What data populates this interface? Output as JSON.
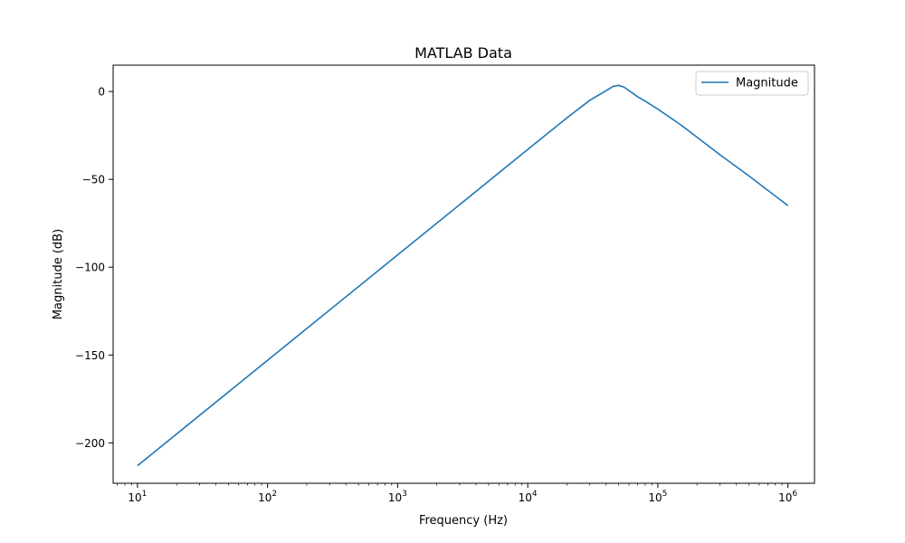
{
  "chart_data": {
    "type": "line",
    "title": "MATLAB Data",
    "xlabel": "Frequency (Hz)",
    "ylabel": "Magnitude (dB)",
    "x_scale": "log",
    "xlim": [
      6.5,
      1600000
    ],
    "ylim": [
      -223,
      15
    ],
    "x_ticks": [
      10,
      100,
      1000,
      10000,
      100000,
      1000000
    ],
    "x_tick_labels": [
      {
        "base": "10",
        "exp": "1"
      },
      {
        "base": "10",
        "exp": "2"
      },
      {
        "base": "10",
        "exp": "3"
      },
      {
        "base": "10",
        "exp": "4"
      },
      {
        "base": "10",
        "exp": "5"
      },
      {
        "base": "10",
        "exp": "6"
      }
    ],
    "y_ticks": [
      0,
      -50,
      -100,
      -150,
      -200
    ],
    "y_tick_labels": [
      "0",
      "−50",
      "−100",
      "−150",
      "−200"
    ],
    "grid": false,
    "legend_position": "top-right",
    "series": [
      {
        "name": "Magnitude",
        "color": "#1f77b4",
        "x": [
          10,
          100,
          1000,
          10000,
          20000,
          30000,
          40000,
          45000,
          50000,
          55000,
          60000,
          70000,
          80000,
          100000,
          150000,
          200000,
          300000,
          500000,
          1000000
        ],
        "y": [
          -213,
          -153,
          -93,
          -33,
          -15,
          -5,
          0.5,
          2.8,
          3.5,
          2.5,
          0.5,
          -3,
          -5.5,
          -10,
          -19,
          -26,
          -36,
          -48,
          -65
        ]
      }
    ]
  }
}
